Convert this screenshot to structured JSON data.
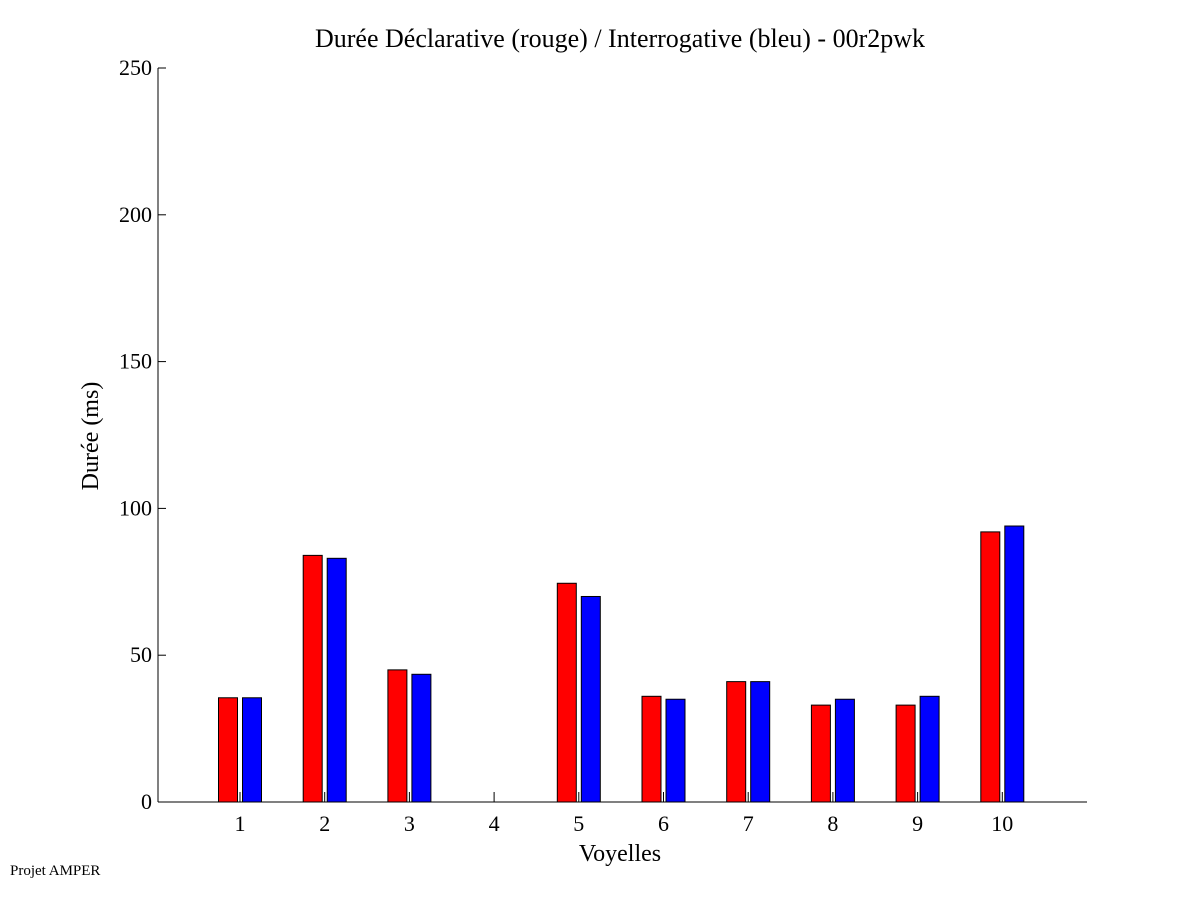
{
  "footer": {
    "credit": "Projet AMPER"
  },
  "colors": {
    "declarative": "#ff0000",
    "interrogative": "#0000ff",
    "axis": "#000000",
    "background": "#ffffff"
  },
  "chart_data": {
    "type": "bar",
    "title": "Durée Déclarative (rouge) / Interrogative (bleu) - 00r2pwk",
    "xlabel": "Voyelles",
    "ylabel": "Durée (ms)",
    "ylim": [
      0,
      250
    ],
    "yticks": [
      0,
      50,
      100,
      150,
      200,
      250
    ],
    "grid": false,
    "categories": [
      "1",
      "2",
      "3",
      "4",
      "5",
      "6",
      "7",
      "8",
      "9",
      "10"
    ],
    "series": [
      {
        "color": "#ff0000",
        "values": [
          35.5,
          84,
          45,
          0,
          74.5,
          36,
          41,
          33,
          33,
          92
        ]
      },
      {
        "color": "#0000ff",
        "values": [
          35.5,
          83,
          43.5,
          0,
          70,
          35,
          41,
          35,
          36,
          94
        ]
      }
    ]
  }
}
